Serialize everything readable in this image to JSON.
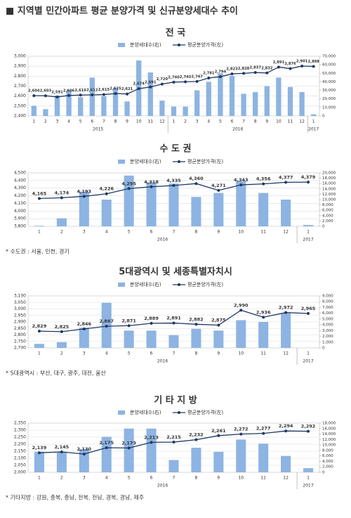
{
  "title": "■ 지역별 민간아파트 평균 분양가격 및 신규분양세대수 추이",
  "chart_data": [
    {
      "type": "bar_line",
      "title": "전 국",
      "categories": [
        "1",
        "2",
        "3",
        "4",
        "5",
        "6",
        "7",
        "8",
        "9",
        "10",
        "11",
        "12",
        "1",
        "2",
        "3",
        "4",
        "5",
        "6",
        "7",
        "8",
        "9",
        "10",
        "11",
        "12",
        "1"
      ],
      "x_groups": [
        {
          "label": "2015",
          "count": 12
        },
        {
          "label": "2016",
          "count": 12
        },
        {
          "label": "2017",
          "count": 1
        }
      ],
      "ylim": [
        2400,
        3000
      ],
      "yticks": [
        {
          "value": 2400,
          "label": "2,400"
        },
        {
          "value": 2500,
          "label": "2,500"
        },
        {
          "value": 2600,
          "label": "2,600"
        },
        {
          "value": 2700,
          "label": "2,700"
        },
        {
          "value": 2800,
          "label": "2,800"
        },
        {
          "value": 2900,
          "label": "2,900"
        },
        {
          "value": 3000,
          "label": "3,000"
        }
      ],
      "y2lim": [
        0,
        70000
      ],
      "y2ticks": [
        0,
        {
          "value": 10000,
          "label": "10,000"
        },
        {
          "value": 20000,
          "label": "20,000"
        },
        {
          "value": 30000,
          "label": "30,000"
        },
        {
          "value": 40000,
          "label": "40,000"
        },
        {
          "value": 50000,
          "label": "50,000"
        },
        {
          "value": 60000,
          "label": "60,000"
        },
        {
          "value": 70000,
          "label": "70,000"
        }
      ],
      "grid": true,
      "series": [
        {
          "name": "분양세대수(右)",
          "type": "bar",
          "axis": "y2",
          "color": "#8db4e2",
          "values": [
            12000,
            8000,
            24000,
            30000,
            22000,
            45000,
            23000,
            33000,
            17000,
            65000,
            51000,
            18000,
            11000,
            11000,
            30000,
            40000,
            50000,
            47000,
            26000,
            28000,
            35000,
            45000,
            34000,
            28000,
            2000
          ]
        },
        {
          "name": "평균분양가격(左)",
          "type": "line",
          "color": "#1f3864",
          "values": [
            2604,
            2603,
            2591,
            2606,
            2610,
            2612,
            2615,
            2625,
            2621,
            2674,
            2691,
            2720,
            2740,
            2743,
            2747,
            2781,
            2794,
            2823,
            2828,
            2837,
            2832,
            2891,
            2876,
            2901,
            2898
          ],
          "value_labels": [
            "2,604",
            "2,603",
            "2,591",
            "2,606",
            "2,610",
            "2,612",
            "2,615",
            "2,625",
            "2,621",
            "2,674",
            "2,691",
            "2,720",
            "2,740",
            "2,743",
            "2,747",
            "2,781",
            "2,794",
            "2,823",
            "2,828",
            "2,837",
            "2,832",
            "2,891",
            "2,876",
            "2,901",
            "2,898"
          ]
        }
      ]
    },
    {
      "type": "bar_line",
      "title": "수 도 권",
      "categories": [
        "1",
        "2",
        "3",
        "4",
        "5",
        "6",
        "7",
        "8",
        "9",
        "10",
        "11",
        "12",
        "1"
      ],
      "x_groups": [
        {
          "label": "2016",
          "count": 12
        },
        {
          "label": "2017",
          "count": 1
        }
      ],
      "ylim": [
        3800,
        4500
      ],
      "yticks": [
        {
          "value": 3800,
          "label": "3,800"
        },
        {
          "value": 3900,
          "label": "3,900"
        },
        {
          "value": 4000,
          "label": "4,000"
        },
        {
          "value": 4100,
          "label": "4,100"
        },
        {
          "value": 4200,
          "label": "4,200"
        },
        {
          "value": 4300,
          "label": "4,300"
        },
        {
          "value": 4400,
          "label": "4,400"
        },
        {
          "value": 4500,
          "label": "4,500"
        }
      ],
      "y2lim": [
        0,
        20000
      ],
      "y2ticks": [
        0,
        {
          "value": 2000,
          "label": "2,000"
        },
        {
          "value": 4000,
          "label": "4,000"
        },
        {
          "value": 6000,
          "label": "6,000"
        },
        {
          "value": 8000,
          "label": "8,000"
        },
        {
          "value": 10000,
          "label": "10,000"
        },
        {
          "value": 12000,
          "label": "12,000"
        },
        {
          "value": 14000,
          "label": "14,000"
        },
        {
          "value": 16000,
          "label": "16,000"
        },
        {
          "value": 18000,
          "label": "18,000"
        },
        {
          "value": 20000,
          "label": "20,000"
        }
      ],
      "grid": true,
      "series": [
        {
          "name": "분양세대수(右)",
          "type": "bar",
          "axis": "y2",
          "color": "#8db4e2",
          "values": [
            200,
            3000,
            13000,
            10000,
            19000,
            16500,
            16000,
            11000,
            12500,
            17000,
            12500,
            10000,
            500
          ]
        },
        {
          "name": "평균분양가격(左)",
          "type": "line",
          "color": "#1f3864",
          "values": [
            4165,
            4174,
            4193,
            4226,
            4295,
            4318,
            4335,
            4360,
            4271,
            4343,
            4356,
            4377,
            4379
          ],
          "value_labels": [
            "4,165",
            "4,174",
            "4,193",
            "4,226",
            "4,295",
            "4,318",
            "4,335",
            "4,360",
            "4,271",
            "4,343",
            "4,356",
            "4,377",
            "4,379"
          ]
        }
      ],
      "note": "* 수도권 : 서울, 인천, 경기"
    },
    {
      "type": "bar_line",
      "title": "5대광역시 및 세종특별자치시",
      "categories": [
        "1",
        "2",
        "3",
        "4",
        "5",
        "6",
        "7",
        "8",
        "9",
        "10",
        "11",
        "12",
        "1"
      ],
      "x_groups": [
        {
          "label": "2016",
          "count": 12
        },
        {
          "label": "2017",
          "count": 1
        }
      ],
      "ylim": [
        2700,
        3100
      ],
      "yticks": [
        {
          "value": 2700,
          "label": "2,700"
        },
        {
          "value": 2750,
          "label": "2,750"
        },
        {
          "value": 2800,
          "label": "2,800"
        },
        {
          "value": 2850,
          "label": "2,850"
        },
        {
          "value": 2900,
          "label": "2,900"
        },
        {
          "value": 2950,
          "label": "2,950"
        },
        {
          "value": 3000,
          "label": "3,000"
        },
        {
          "value": 3050,
          "label": "3,050"
        },
        {
          "value": 3100,
          "label": "3,100"
        }
      ],
      "y2lim": [
        0,
        9000
      ],
      "y2ticks": [
        0,
        {
          "value": 1000,
          "label": "1,000"
        },
        {
          "value": 2000,
          "label": "2,000"
        },
        {
          "value": 3000,
          "label": "3,000"
        },
        {
          "value": 4000,
          "label": "4,000"
        },
        {
          "value": 5000,
          "label": "5,000"
        },
        {
          "value": 6000,
          "label": "6,000"
        },
        {
          "value": 7000,
          "label": "7,000"
        },
        {
          "value": 8000,
          "label": "8,000"
        },
        {
          "value": 9000,
          "label": "9,000"
        }
      ],
      "grid": true,
      "series": [
        {
          "name": "분양세대수(右)",
          "type": "bar",
          "axis": "y2",
          "color": "#8db4e2",
          "values": [
            700,
            1000,
            3500,
            7800,
            3000,
            3000,
            2200,
            3300,
            3000,
            4800,
            4500,
            6000,
            0
          ]
        },
        {
          "name": "평균분양가격(左)",
          "type": "line",
          "color": "#1f3864",
          "values": [
            2829,
            2825,
            2846,
            2867,
            2871,
            2889,
            2891,
            2882,
            2875,
            2990,
            2936,
            2972,
            2965
          ],
          "value_labels": [
            "2,829",
            "2,825",
            "2,846",
            "2,867",
            "2,871",
            "2,889",
            "2,891",
            "2,882",
            "2,875",
            "2,990",
            "2,936",
            "2,972",
            "2,965"
          ]
        }
      ],
      "note": "* 5대광역시 : 부산, 대구, 광주, 대전, 울산"
    },
    {
      "type": "bar_line",
      "title": "기 타 지 방",
      "categories": [
        "1",
        "2",
        "3",
        "4",
        "5",
        "6",
        "7",
        "8",
        "9",
        "10",
        "11",
        "12",
        "1"
      ],
      "x_groups": [
        {
          "label": "2016",
          "count": 12
        },
        {
          "label": "2017",
          "count": 1
        }
      ],
      "ylim": [
        2000,
        2350
      ],
      "yticks": [
        {
          "value": 2000,
          "label": "2,000"
        },
        {
          "value": 2050,
          "label": "2,050"
        },
        {
          "value": 2100,
          "label": "2,100"
        },
        {
          "value": 2150,
          "label": "2,150"
        },
        {
          "value": 2200,
          "label": "2,200"
        },
        {
          "value": 2250,
          "label": "2,250"
        },
        {
          "value": 2300,
          "label": "2,300"
        },
        {
          "value": 2350,
          "label": "2,350"
        }
      ],
      "y2lim": [
        0,
        18000
      ],
      "y2ticks": [
        0,
        {
          "value": 2000,
          "label": "2,000"
        },
        {
          "value": 4000,
          "label": "4,000"
        },
        {
          "value": 6000,
          "label": "6,000"
        },
        {
          "value": 8000,
          "label": "8,000"
        },
        {
          "value": 10000,
          "label": "10,000"
        },
        {
          "value": 12000,
          "label": "12,000"
        },
        {
          "value": 14000,
          "label": "14,000"
        },
        {
          "value": 16000,
          "label": "16,000"
        },
        {
          "value": 18000,
          "label": "18,000"
        }
      ],
      "grid": true,
      "series": [
        {
          "name": "분양세대수(右)",
          "type": "bar",
          "axis": "y2",
          "color": "#8db4e2",
          "values": [
            7500,
            7500,
            8500,
            13000,
            16000,
            16000,
            4500,
            9000,
            7500,
            12000,
            10500,
            6000,
            1500
          ]
        },
        {
          "name": "평균분양가격(左)",
          "type": "line",
          "color": "#1f3864",
          "values": [
            2139,
            2145,
            2130,
            2175,
            2173,
            2213,
            2215,
            2232,
            2261,
            2272,
            2277,
            2294,
            2292
          ],
          "value_labels": [
            "2,139",
            "2,145",
            "2,130",
            "2,175",
            "2,173",
            "2,213",
            "2,215",
            "2,232",
            "2,261",
            "2,272",
            "2,277",
            "2,294",
            "2,292"
          ]
        }
      ],
      "note": "* 기타지방 : 강원, 충북, 충남, 전북, 전남, 경북, 경남, 제주"
    }
  ]
}
